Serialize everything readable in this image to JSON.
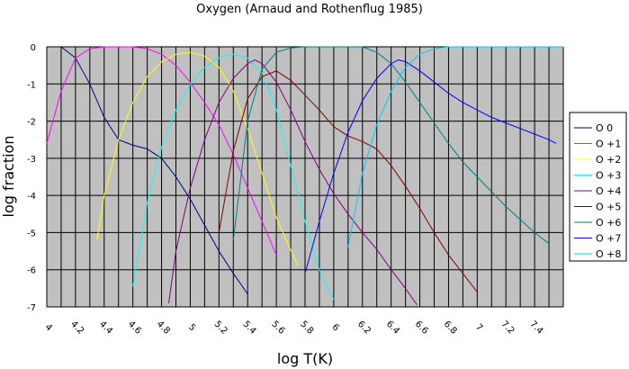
{
  "chart_data": {
    "type": "line",
    "title": "Oxygen  (Arnaud and Rothenflug 1985)",
    "xlabel": "log T(K)",
    "ylabel": "log fraction",
    "xlim": [
      4,
      7.6
    ],
    "ylim": [
      -7,
      0
    ],
    "grid": true,
    "legend_position": "right",
    "plot_background": "#c0c0c0",
    "x_ticks": [
      4,
      4.2,
      4.4,
      4.6,
      4.8,
      5,
      5.2,
      5.4,
      5.6,
      5.8,
      6,
      6.2,
      6.4,
      6.6,
      6.8,
      7,
      7.2,
      7.4
    ],
    "x_tick_labels": [
      "4",
      "4.2",
      "4.4",
      "4.6",
      "4.8",
      "5",
      "5.2",
      "5.4",
      "5.6",
      "5.8",
      "6",
      "6.2",
      "6.4",
      "6.6",
      "6.8",
      "7",
      "7.2",
      "7.4"
    ],
    "y_ticks": [
      0,
      -1,
      -2,
      -3,
      -4,
      -5,
      -6,
      -7
    ],
    "y_tick_labels": [
      "0",
      "-1",
      "-2",
      "-3",
      "-4",
      "-5",
      "-6",
      "-7"
    ],
    "series": [
      {
        "name": "O 0",
        "color": "#000080",
        "points": [
          [
            4.1,
            0
          ],
          [
            4.2,
            -0.3
          ],
          [
            4.3,
            -1.0
          ],
          [
            4.4,
            -1.9
          ],
          [
            4.5,
            -2.5
          ],
          [
            4.6,
            -2.65
          ],
          [
            4.7,
            -2.75
          ],
          [
            4.8,
            -3.0
          ],
          [
            4.9,
            -3.5
          ],
          [
            5.0,
            -4.1
          ],
          [
            5.1,
            -4.8
          ],
          [
            5.2,
            -5.5
          ],
          [
            5.3,
            -6.1
          ],
          [
            5.4,
            -6.65
          ]
        ]
      },
      {
        "name": "O +1",
        "color": "#ff00ff",
        "points": [
          [
            4.0,
            -2.6
          ],
          [
            4.1,
            -1.2
          ],
          [
            4.2,
            -0.3
          ],
          [
            4.3,
            -0.05
          ],
          [
            4.4,
            0
          ],
          [
            4.5,
            0
          ],
          [
            4.6,
            0
          ],
          [
            4.7,
            -0.05
          ],
          [
            4.8,
            -0.2
          ],
          [
            4.9,
            -0.5
          ],
          [
            5.0,
            -0.95
          ],
          [
            5.1,
            -1.5
          ],
          [
            5.2,
            -2.1
          ],
          [
            5.3,
            -2.9
          ],
          [
            5.4,
            -3.8
          ],
          [
            5.5,
            -4.7
          ],
          [
            5.6,
            -5.6
          ]
        ]
      },
      {
        "name": "O +2",
        "color": "#ffff00",
        "points": [
          [
            4.35,
            -5.2
          ],
          [
            4.4,
            -4.0
          ],
          [
            4.5,
            -2.5
          ],
          [
            4.6,
            -1.5
          ],
          [
            4.7,
            -0.8
          ],
          [
            4.8,
            -0.4
          ],
          [
            4.9,
            -0.2
          ],
          [
            5.0,
            -0.15
          ],
          [
            5.1,
            -0.25
          ],
          [
            5.2,
            -0.55
          ],
          [
            5.3,
            -1.2
          ],
          [
            5.4,
            -2.2
          ],
          [
            5.5,
            -3.4
          ],
          [
            5.6,
            -4.6
          ],
          [
            5.75,
            -5.9
          ]
        ]
      },
      {
        "name": "O +3",
        "color": "#00ffff",
        "points": [
          [
            4.6,
            -6.45
          ],
          [
            4.7,
            -4.2
          ],
          [
            4.8,
            -2.7
          ],
          [
            4.9,
            -1.7
          ],
          [
            5.0,
            -1.0
          ],
          [
            5.1,
            -0.55
          ],
          [
            5.2,
            -0.3
          ],
          [
            5.3,
            -0.2
          ],
          [
            5.4,
            -0.3
          ],
          [
            5.5,
            -0.7
          ],
          [
            5.6,
            -1.7
          ],
          [
            5.7,
            -3.2
          ],
          [
            5.8,
            -4.7
          ],
          [
            5.9,
            -6.0
          ],
          [
            6.0,
            -6.8
          ]
        ]
      },
      {
        "name": "O +4",
        "color": "#800080",
        "points": [
          [
            4.85,
            -6.9
          ],
          [
            4.9,
            -5.5
          ],
          [
            5.0,
            -3.8
          ],
          [
            5.1,
            -2.5
          ],
          [
            5.2,
            -1.5
          ],
          [
            5.3,
            -0.85
          ],
          [
            5.4,
            -0.45
          ],
          [
            5.45,
            -0.35
          ],
          [
            5.5,
            -0.45
          ],
          [
            5.6,
            -0.95
          ],
          [
            5.7,
            -1.7
          ],
          [
            5.8,
            -2.55
          ],
          [
            5.9,
            -3.3
          ],
          [
            6.0,
            -3.95
          ],
          [
            6.1,
            -4.5
          ],
          [
            6.2,
            -5.0
          ],
          [
            6.3,
            -5.45
          ],
          [
            6.4,
            -6.0
          ],
          [
            6.5,
            -6.5
          ],
          [
            6.58,
            -6.95
          ]
        ]
      },
      {
        "name": "O +5",
        "color": "#800000",
        "points": [
          [
            5.2,
            -5.0
          ],
          [
            5.3,
            -2.8
          ],
          [
            5.4,
            -1.4
          ],
          [
            5.5,
            -0.8
          ],
          [
            5.6,
            -0.65
          ],
          [
            5.7,
            -0.9
          ],
          [
            5.8,
            -1.3
          ],
          [
            5.9,
            -1.7
          ],
          [
            6.0,
            -2.15
          ],
          [
            6.1,
            -2.4
          ],
          [
            6.2,
            -2.55
          ],
          [
            6.3,
            -2.75
          ],
          [
            6.4,
            -3.2
          ],
          [
            6.5,
            -3.75
          ],
          [
            6.6,
            -4.35
          ],
          [
            6.7,
            -5.0
          ],
          [
            6.8,
            -5.6
          ],
          [
            6.9,
            -6.1
          ],
          [
            7.0,
            -6.6
          ]
        ]
      },
      {
        "name": "O +6",
        "color": "#008080",
        "points": [
          [
            5.3,
            -5.2
          ],
          [
            5.4,
            -2.0
          ],
          [
            5.5,
            -0.6
          ],
          [
            5.6,
            -0.15
          ],
          [
            5.7,
            -0.03
          ],
          [
            5.8,
            0
          ],
          [
            6.0,
            0
          ],
          [
            6.2,
            0
          ],
          [
            6.3,
            -0.15
          ],
          [
            6.4,
            -0.45
          ],
          [
            6.5,
            -0.95
          ],
          [
            6.6,
            -1.5
          ],
          [
            6.7,
            -2.05
          ],
          [
            6.8,
            -2.6
          ],
          [
            6.9,
            -3.1
          ],
          [
            7.0,
            -3.5
          ],
          [
            7.1,
            -3.9
          ],
          [
            7.2,
            -4.3
          ],
          [
            7.3,
            -4.65
          ],
          [
            7.4,
            -5.0
          ],
          [
            7.5,
            -5.3
          ]
        ]
      },
      {
        "name": "O +7",
        "color": "#0000ff",
        "points": [
          [
            5.8,
            -6.1
          ],
          [
            5.9,
            -4.7
          ],
          [
            6.0,
            -3.4
          ],
          [
            6.1,
            -2.3
          ],
          [
            6.2,
            -1.45
          ],
          [
            6.3,
            -0.85
          ],
          [
            6.4,
            -0.45
          ],
          [
            6.45,
            -0.35
          ],
          [
            6.5,
            -0.4
          ],
          [
            6.6,
            -0.65
          ],
          [
            6.7,
            -0.95
          ],
          [
            6.8,
            -1.25
          ],
          [
            6.9,
            -1.5
          ],
          [
            7.0,
            -1.7
          ],
          [
            7.1,
            -1.9
          ],
          [
            7.2,
            -2.05
          ],
          [
            7.3,
            -2.2
          ],
          [
            7.4,
            -2.35
          ],
          [
            7.5,
            -2.5
          ],
          [
            7.55,
            -2.6
          ]
        ]
      },
      {
        "name": "O +8",
        "color": "#00ccff",
        "points": [
          [
            6.1,
            -5.4
          ],
          [
            6.2,
            -3.4
          ],
          [
            6.3,
            -2.1
          ],
          [
            6.4,
            -1.2
          ],
          [
            6.5,
            -0.55
          ],
          [
            6.6,
            -0.2
          ],
          [
            6.7,
            -0.05
          ],
          [
            6.8,
            0
          ],
          [
            7.0,
            0
          ],
          [
            7.2,
            0
          ],
          [
            7.4,
            0
          ],
          [
            7.6,
            0
          ]
        ]
      }
    ]
  }
}
